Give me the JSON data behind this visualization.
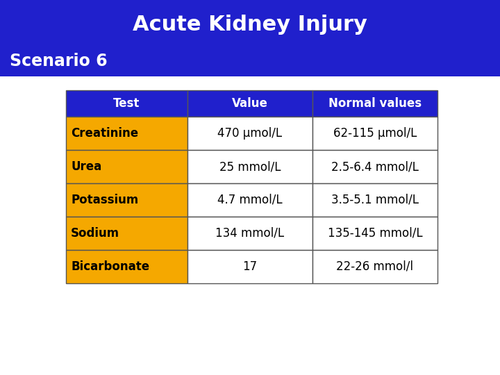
{
  "title": "Acute Kidney Injury",
  "subtitle": "Scenario 6",
  "header_bg": "#2020cc",
  "header_text_color": "#ffffff",
  "title_fontsize": 22,
  "subtitle_fontsize": 17,
  "col_headers": [
    "Test",
    "Value",
    "Normal values"
  ],
  "rows": [
    [
      "Creatinine",
      "470 μmol/L",
      "62-115 μmol/L"
    ],
    [
      "Urea",
      "25 mmol/L",
      "2.5-6.4 mmol/L"
    ],
    [
      "Potassium",
      "4.7 mmol/L",
      "3.5-5.1 mmol/L"
    ],
    [
      "Sodium",
      "134 mmol/L",
      "135-145 mmol/L"
    ],
    [
      "Bicarbonate",
      "17",
      "22-26 mmol/l"
    ]
  ],
  "col_header_bg": "#2020cc",
  "col_header_text": "#ffffff",
  "row_name_bg": "#f5a800",
  "row_name_text": "#000000",
  "row_value_bg": "#ffffff",
  "row_value_text": "#000000",
  "table_border_color": "#555555",
  "bg_color": "#ffffff",
  "table_fontsize": 12
}
